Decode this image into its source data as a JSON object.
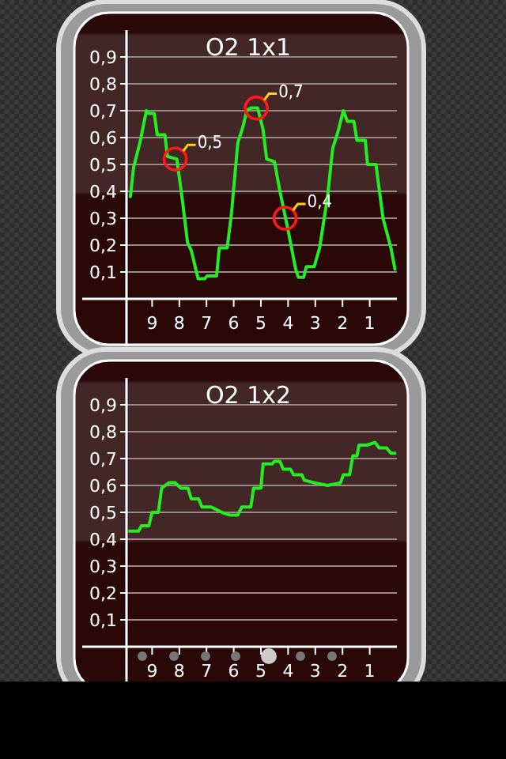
{
  "chart_data": [
    {
      "type": "line",
      "title": "O2 1x1",
      "xlim": [
        10,
        0
      ],
      "xticks": [
        9,
        8,
        7,
        6,
        5,
        4,
        3,
        2,
        1
      ],
      "ylim": [
        0,
        1
      ],
      "yticks": [
        {
          "value": 0.1,
          "label": "0,1"
        },
        {
          "value": 0.2,
          "label": "0,2"
        },
        {
          "value": 0.3,
          "label": "0,3"
        },
        {
          "value": 0.4,
          "label": "0,4"
        },
        {
          "value": 0.5,
          "label": "0,5"
        },
        {
          "value": 0.6,
          "label": "0,6"
        },
        {
          "value": 0.7,
          "label": "0,7"
        },
        {
          "value": 0.8,
          "label": "0,8"
        },
        {
          "value": 0.9,
          "label": "0,9"
        }
      ],
      "grid": "y",
      "series": [
        {
          "color": "#22ee22",
          "x": [
            9.8,
            9.68,
            9.45,
            9.21,
            9.12,
            8.92,
            8.81,
            8.53,
            8.44,
            8.09,
            7.89,
            7.7,
            7.56,
            7.31,
            7.06,
            6.98,
            6.63,
            6.53,
            6.24,
            6.09,
            5.85,
            5.66,
            5.52,
            5.37,
            5.12,
            4.92,
            4.79,
            4.5,
            4.3,
            4.01,
            3.72,
            3.62,
            3.43,
            3.33,
            3.04,
            2.84,
            2.55,
            2.36,
            2.17,
            1.97,
            1.82,
            1.58,
            1.47,
            1.16,
            1.08,
            0.77,
            0.51,
            0.22,
            0.07
          ],
          "values": [
            0.38,
            0.49,
            0.58,
            0.7,
            0.69,
            0.69,
            0.61,
            0.61,
            0.53,
            0.52,
            0.37,
            0.21,
            0.18,
            0.075,
            0.075,
            0.085,
            0.085,
            0.19,
            0.19,
            0.31,
            0.58,
            0.64,
            0.7,
            0.71,
            0.71,
            0.63,
            0.52,
            0.51,
            0.4,
            0.26,
            0.11,
            0.08,
            0.08,
            0.12,
            0.12,
            0.19,
            0.38,
            0.56,
            0.62,
            0.7,
            0.66,
            0.66,
            0.59,
            0.59,
            0.5,
            0.5,
            0.3,
            0.19,
            0.11
          ]
        }
      ],
      "annotations": [
        {
          "text": "0,5",
          "x": 8.15,
          "y": 0.52
        },
        {
          "text": "0,7",
          "x": 5.17,
          "y": 0.71
        },
        {
          "text": "0,4",
          "x": 4.11,
          "y": 0.3
        }
      ]
    },
    {
      "type": "line",
      "title": "O2 1x2",
      "xlim": [
        10,
        0
      ],
      "xticks": [
        9,
        8,
        7,
        6,
        5,
        4,
        3,
        2,
        1
      ],
      "ylim": [
        0,
        1
      ],
      "yticks": [
        {
          "value": 0.1,
          "label": "0,1"
        },
        {
          "value": 0.2,
          "label": "0,2"
        },
        {
          "value": 0.3,
          "label": "0,3"
        },
        {
          "value": 0.4,
          "label": "0,4"
        },
        {
          "value": 0.5,
          "label": "0,5"
        },
        {
          "value": 0.6,
          "label": "0,6"
        },
        {
          "value": 0.7,
          "label": "0,7"
        },
        {
          "value": 0.8,
          "label": "0,8"
        },
        {
          "value": 0.9,
          "label": "0,9"
        }
      ],
      "grid": "y",
      "series": [
        {
          "color": "#22ee22",
          "x": [
            9.83,
            9.5,
            9.39,
            9.12,
            9.0,
            8.77,
            8.65,
            8.38,
            8.15,
            7.95,
            7.68,
            7.56,
            7.29,
            7.17,
            6.83,
            6.63,
            6.44,
            6.15,
            5.85,
            5.7,
            5.37,
            5.27,
            5.0,
            4.92,
            4.59,
            4.5,
            4.3,
            4.18,
            3.91,
            3.8,
            3.49,
            3.41,
            3.04,
            2.55,
            2.07,
            1.97,
            1.74,
            1.62,
            1.47,
            1.39,
            1.1,
            0.81,
            0.65,
            0.38,
            0.22,
            0.07
          ],
          "values": [
            0.43,
            0.43,
            0.45,
            0.45,
            0.5,
            0.5,
            0.59,
            0.61,
            0.61,
            0.59,
            0.59,
            0.55,
            0.55,
            0.52,
            0.52,
            0.51,
            0.5,
            0.49,
            0.49,
            0.52,
            0.52,
            0.59,
            0.59,
            0.68,
            0.68,
            0.69,
            0.69,
            0.66,
            0.66,
            0.64,
            0.64,
            0.62,
            0.61,
            0.6,
            0.61,
            0.64,
            0.64,
            0.71,
            0.71,
            0.75,
            0.75,
            0.76,
            0.74,
            0.74,
            0.72,
            0.72
          ]
        }
      ]
    }
  ]
}
